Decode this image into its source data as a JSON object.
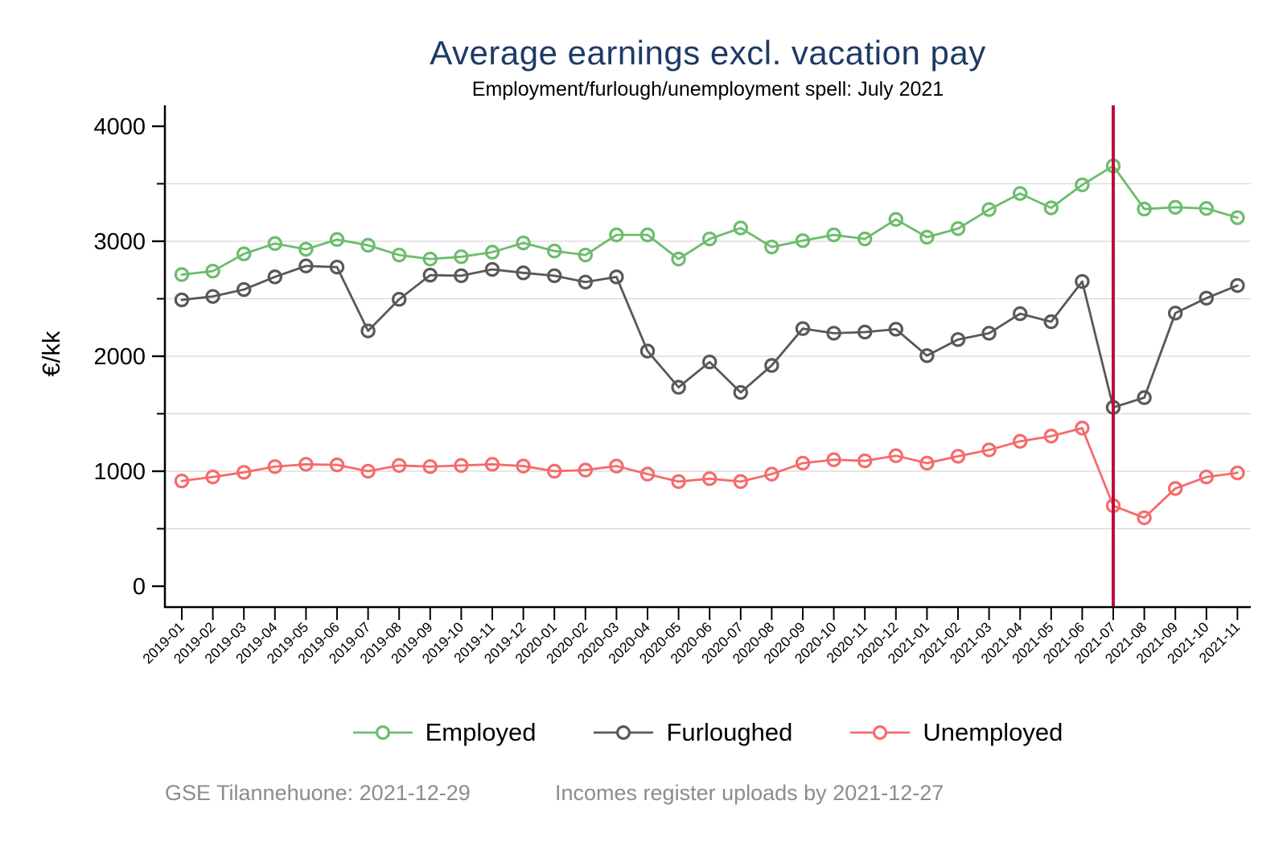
{
  "chart_data": {
    "type": "line",
    "title": "Average earnings excl. vacation pay",
    "subtitle": "Employment/furlough/unemployment spell: July 2021",
    "xlabel": "",
    "ylabel": "€/kk",
    "ylim": [
      0,
      4000
    ],
    "y_major_ticks": [
      0,
      1000,
      2000,
      3000,
      4000
    ],
    "y_minor_ticks": [
      500,
      1500,
      2500,
      3500
    ],
    "y_gridlines": [
      500,
      1000,
      1500,
      2000,
      2500,
      3000,
      3500
    ],
    "grid": true,
    "legend_position": "bottom",
    "x_tick_angle": 45,
    "x": [
      "2019-01",
      "2019-02",
      "2019-03",
      "2019-04",
      "2019-05",
      "2019-06",
      "2019-07",
      "2019-08",
      "2019-09",
      "2019-10",
      "2019-11",
      "2019-12",
      "2020-01",
      "2020-02",
      "2020-03",
      "2020-04",
      "2020-05",
      "2020-06",
      "2020-07",
      "2020-08",
      "2020-09",
      "2020-10",
      "2020-11",
      "2020-12",
      "2021-01",
      "2021-02",
      "2021-03",
      "2021-04",
      "2021-05",
      "2021-06",
      "2021-07",
      "2021-08",
      "2021-09",
      "2021-10",
      "2021-11"
    ],
    "series": [
      {
        "name": "Employed",
        "color": "#6cbc6c",
        "marker": "open-circle",
        "values": [
          2710,
          2740,
          2890,
          2980,
          2930,
          3015,
          2965,
          2880,
          2845,
          2865,
          2905,
          2985,
          2915,
          2880,
          3055,
          3055,
          2845,
          3020,
          3115,
          2950,
          3005,
          3055,
          3020,
          3190,
          3035,
          3110,
          3275,
          3415,
          3290,
          3490,
          3655,
          3280,
          3295,
          3285,
          3205
        ]
      },
      {
        "name": "Furloughed",
        "color": "#585858",
        "marker": "open-circle",
        "values": [
          2490,
          2520,
          2580,
          2690,
          2785,
          2775,
          2220,
          2495,
          2705,
          2700,
          2755,
          2725,
          2700,
          2645,
          2690,
          2045,
          1730,
          1950,
          1685,
          1920,
          2240,
          2200,
          2210,
          2235,
          2005,
          2145,
          2200,
          2370,
          2300,
          2650,
          1555,
          1640,
          2375,
          2505,
          2615
        ]
      },
      {
        "name": "Unemployed",
        "color": "#f56b6b",
        "marker": "open-circle",
        "values": [
          915,
          950,
          990,
          1040,
          1060,
          1055,
          1000,
          1050,
          1040,
          1050,
          1060,
          1045,
          1000,
          1010,
          1045,
          975,
          910,
          935,
          910,
          975,
          1070,
          1100,
          1090,
          1135,
          1070,
          1130,
          1185,
          1260,
          1305,
          1375,
          700,
          595,
          850,
          950,
          985
        ]
      }
    ],
    "vline": {
      "x": "2021-07",
      "color": "#c00b3c"
    },
    "axis_color": "#000000",
    "gridline_color": "#d8d8d8",
    "title_color": "#1e3a66"
  },
  "footer": {
    "note_left": "GSE Tilannehuone: 2021-12-29",
    "note_right": "Incomes register uploads by 2021-12-27"
  }
}
